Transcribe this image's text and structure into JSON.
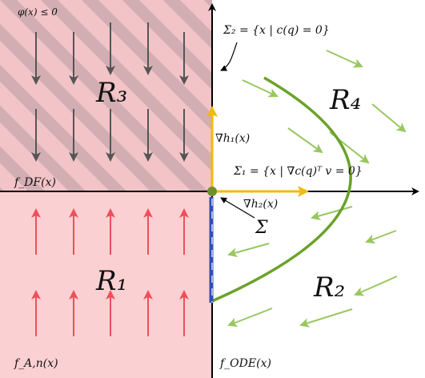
{
  "labels": {
    "phi": "φ(x) ≤ 0",
    "sigma2": "Σ₂ = {x | c(q) = 0}",
    "sigma1": "Σ₁ = {x | ∇c(q)ᵀ v = 0}",
    "sigma": "Σ",
    "grad_h1": "∇h₁(x)",
    "grad_h2": "∇h₂(x)",
    "f_df": "f_DF(x)",
    "f_an": "f_A,n(x)",
    "f_ode": "f_ODE(x)"
  },
  "regions": {
    "R1": "R₁",
    "R2": "R₂",
    "R3": "R₃",
    "R4": "R₄"
  },
  "colors": {
    "hatch_pink": "#f2c4c8",
    "hatch_grey": "#d2aeb3",
    "region_r1": "#fbd0d3",
    "axis": "#000000",
    "curve_green": "#6aa22a",
    "field_green": "#98c75f",
    "arrow_dark": "#555555",
    "arrow_red": "#ef4f5a",
    "gradient_yellow": "#f3b90c",
    "sigma_blue": "#2f4fb8",
    "origin_dot": "#6f8f2e"
  }
}
